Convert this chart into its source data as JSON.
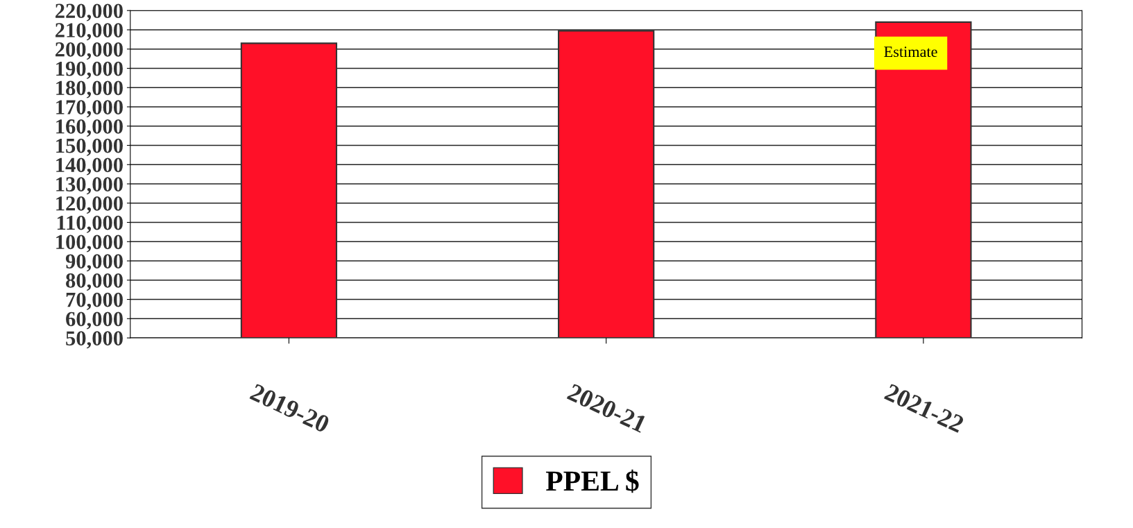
{
  "chart_data": {
    "type": "bar",
    "categories": [
      "2019-20",
      "2020-21",
      "2021-22"
    ],
    "series": [
      {
        "name": "PPEL $",
        "color": "#ff1028",
        "values": [
          203000,
          209500,
          214000
        ]
      }
    ],
    "ylim": [
      50000,
      220000
    ],
    "yticks": [
      {
        "value": 50000,
        "label": "50,000"
      },
      {
        "value": 60000,
        "label": "60,000"
      },
      {
        "value": 70000,
        "label": "70,000"
      },
      {
        "value": 80000,
        "label": "80,000"
      },
      {
        "value": 90000,
        "label": "90,000"
      },
      {
        "value": 100000,
        "label": "100,000"
      },
      {
        "value": 110000,
        "label": "110,000"
      },
      {
        "value": 120000,
        "label": "120,000"
      },
      {
        "value": 130000,
        "label": "130,000"
      },
      {
        "value": 140000,
        "label": "140,000"
      },
      {
        "value": 150000,
        "label": "150,000"
      },
      {
        "value": 160000,
        "label": "160,000"
      },
      {
        "value": 170000,
        "label": "170,000"
      },
      {
        "value": 180000,
        "label": "180,000"
      },
      {
        "value": 190000,
        "label": "190,000"
      },
      {
        "value": 200000,
        "label": "200,000"
      },
      {
        "value": 210000,
        "label": "210,000"
      },
      {
        "value": 220000,
        "label": "220,000"
      }
    ],
    "annotations": [
      "Estimate"
    ],
    "grid": "y",
    "legend": "bottom"
  }
}
